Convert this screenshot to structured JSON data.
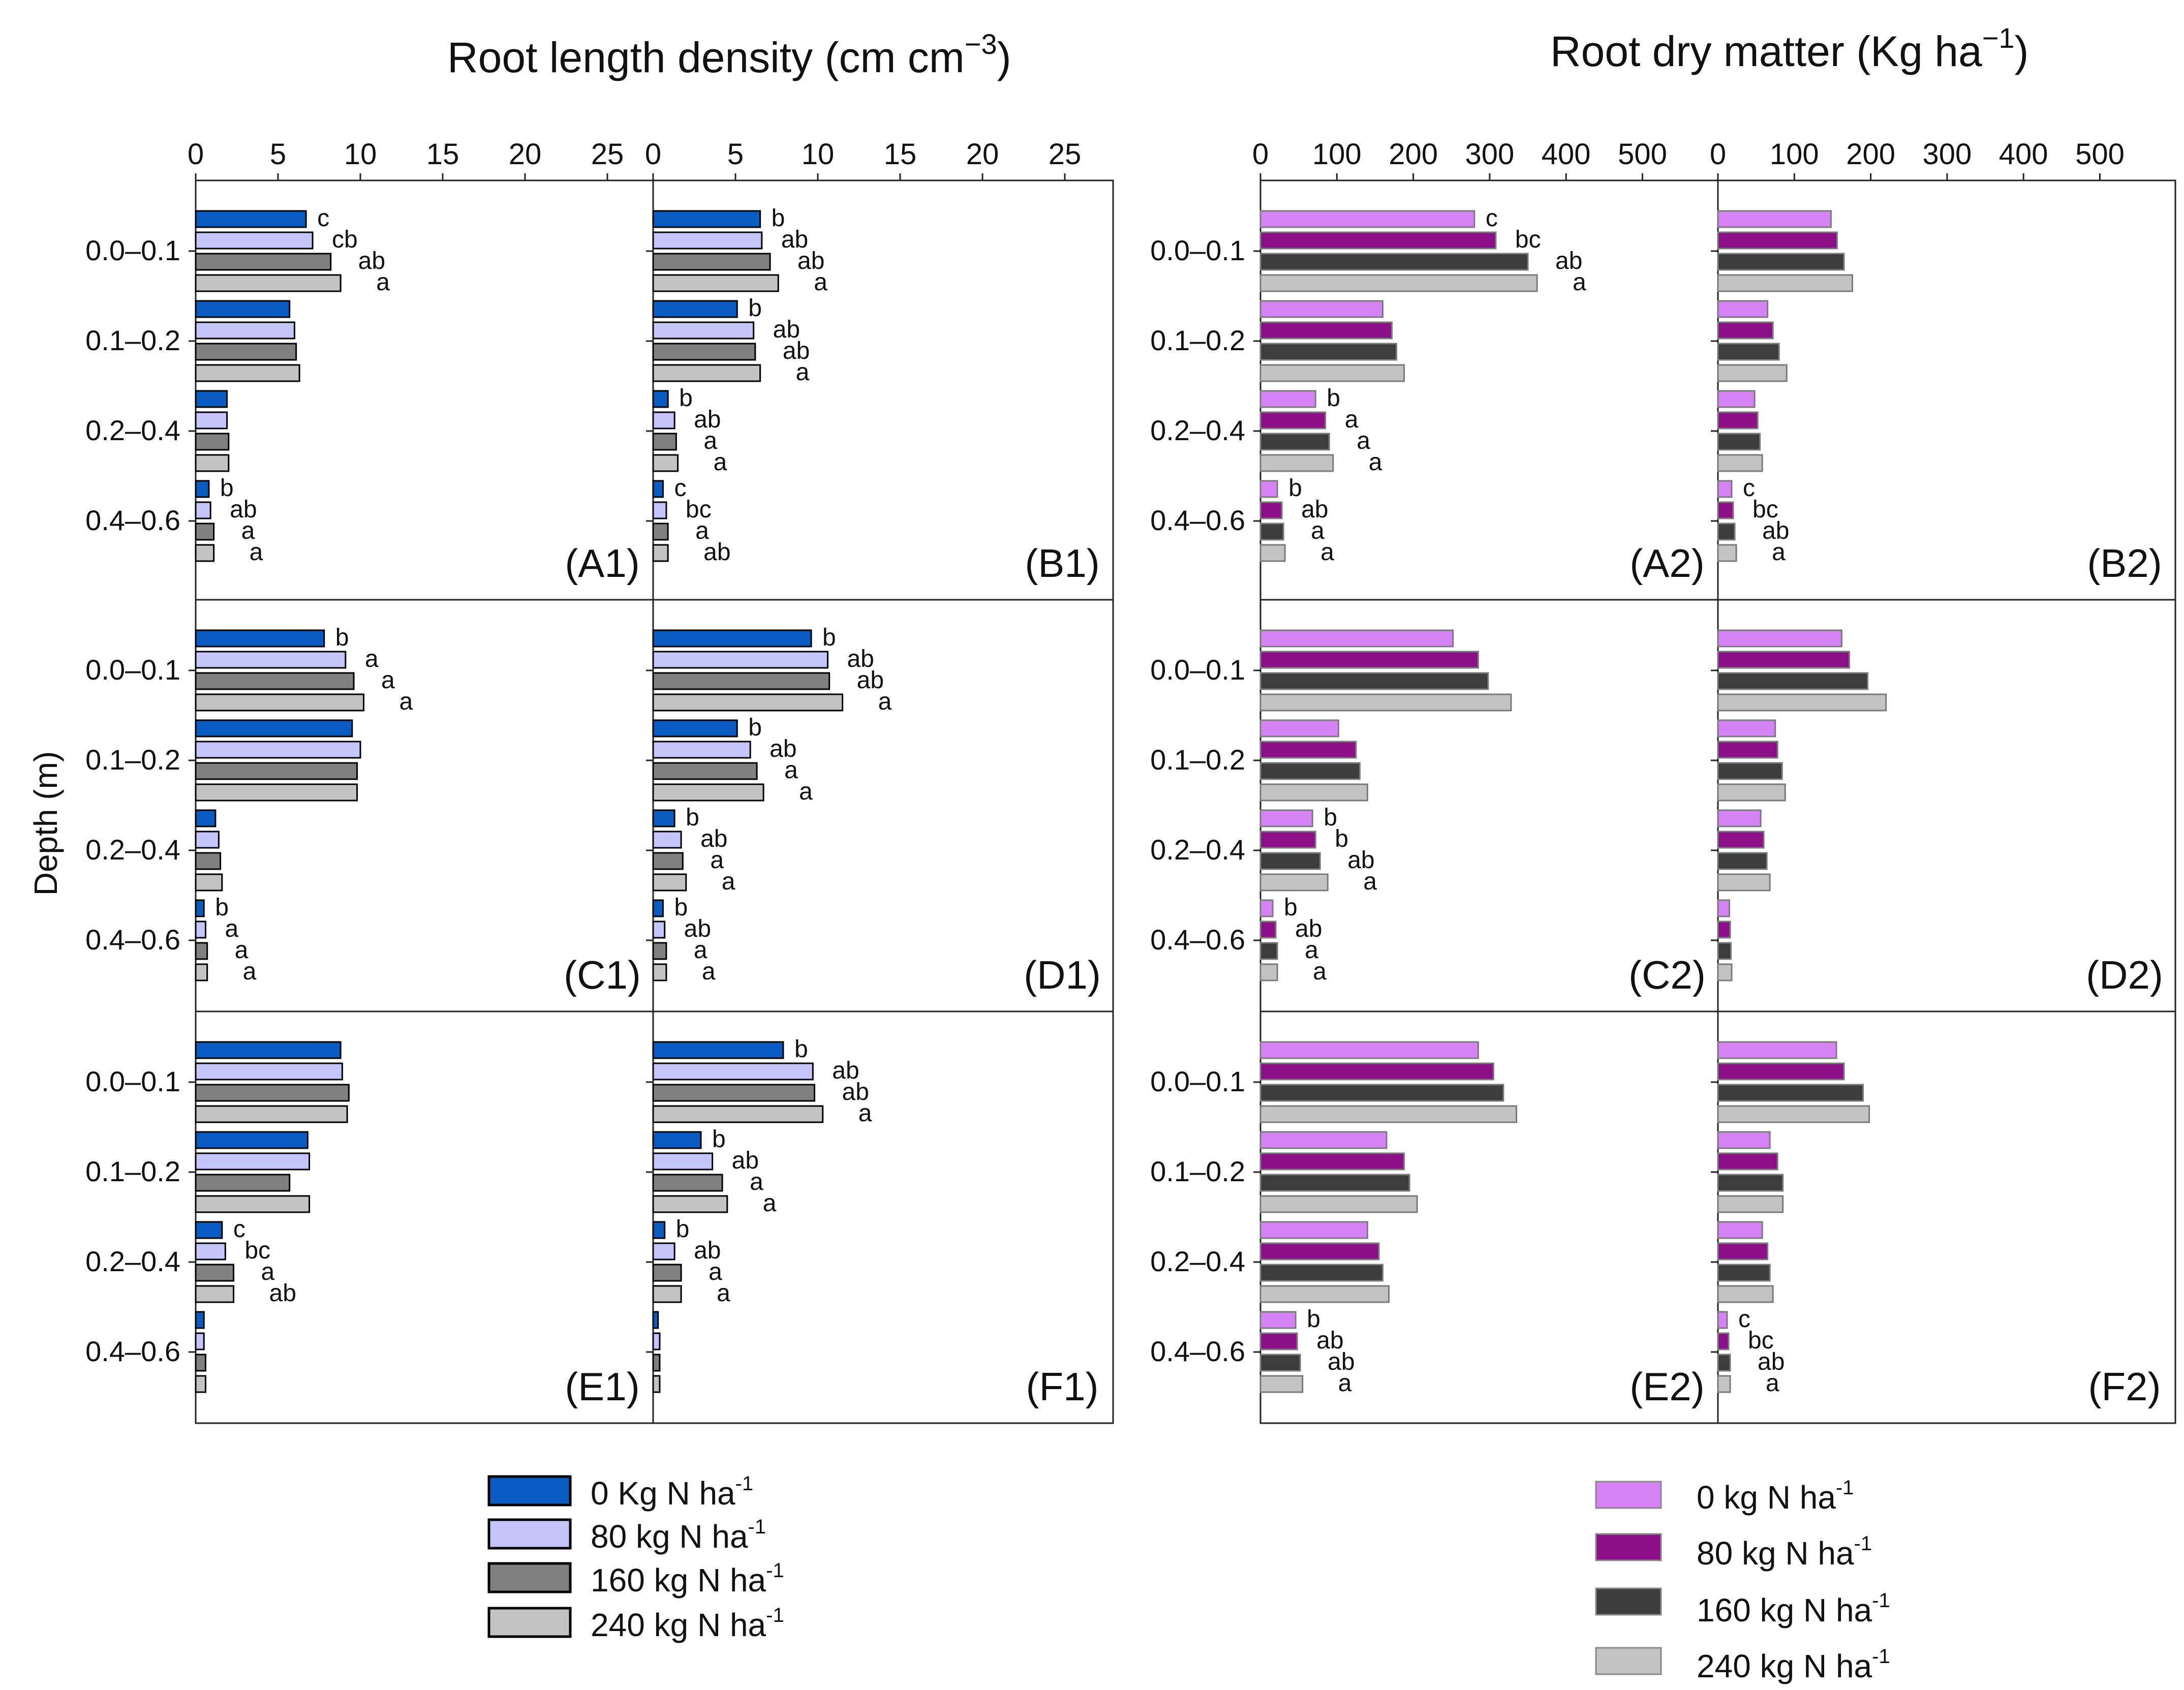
{
  "figure": {
    "left_title": "Root length density (cm cm",
    "left_title_unit_exp": "−3",
    "left_title_close": ")",
    "right_title": "Root dry matter (Kg ha",
    "right_title_unit_exp": "−1",
    "right_title_close": ")",
    "y_axis_label": "Depth (m)"
  },
  "legend_left": [
    {
      "label": "0 Kg N ha",
      "exp": "-1",
      "color": "#0b5cc1"
    },
    {
      "label": "80 kg N ha",
      "exp": "-1",
      "color": "#c5c5fb"
    },
    {
      "label": "160 kg N ha",
      "exp": "-1",
      "color": "#808080"
    },
    {
      "label": "240 kg N ha",
      "exp": "-1",
      "color": "#c3c3c3"
    }
  ],
  "legend_right": [
    {
      "label": "0 kg N ha",
      "exp": "-1",
      "color": "#d683f5"
    },
    {
      "label": "80 kg N ha",
      "exp": "-1",
      "color": "#8b0f87"
    },
    {
      "label": "160 kg N ha",
      "exp": "-1",
      "color": "#3c3c3c"
    },
    {
      "label": "240 kg N ha",
      "exp": "-1",
      "color": "#c3c3c3"
    }
  ],
  "chart_data": [
    {
      "id": "A1",
      "panel_label": "(A1)",
      "type": "bar",
      "orientation": "horizontal",
      "metric": "Root length density",
      "xlim": [
        0,
        27
      ],
      "xticks": [
        0,
        5,
        10,
        15,
        20,
        25
      ],
      "show_ticks": true,
      "show_ylabels": true,
      "palette": "blue",
      "categories": [
        "0.0–0.1",
        "0.1–0.2",
        "0.2–0.4",
        "0.4–0.6"
      ],
      "series": [
        {
          "name": "0 Kg N ha-1",
          "values": [
            6.7,
            5.7,
            1.9,
            0.8
          ]
        },
        {
          "name": "80 kg N ha-1",
          "values": [
            7.1,
            6.0,
            1.9,
            0.9
          ]
        },
        {
          "name": "160 kg N ha-1",
          "values": [
            8.2,
            6.1,
            2.0,
            1.1
          ]
        },
        {
          "name": "240 kg N ha-1",
          "values": [
            8.8,
            6.3,
            2.0,
            1.1
          ]
        }
      ],
      "letters": [
        [
          "c",
          "cb",
          "ab",
          "a"
        ],
        [
          "",
          "",
          "",
          ""
        ],
        [
          "",
          "",
          "",
          ""
        ],
        [
          "b",
          "ab",
          "a",
          "a"
        ]
      ]
    },
    {
      "id": "B1",
      "panel_label": "(B1)",
      "type": "bar",
      "orientation": "horizontal",
      "metric": "Root length density",
      "xlim": [
        0,
        27
      ],
      "xticks": [
        0,
        5,
        10,
        15,
        20,
        25
      ],
      "show_ticks": true,
      "show_ylabels": false,
      "palette": "blue",
      "categories": [
        "0.0–0.1",
        "0.1–0.2",
        "0.2–0.4",
        "0.4–0.6"
      ],
      "series": [
        {
          "name": "0 Kg N ha-1",
          "values": [
            6.5,
            5.1,
            0.9,
            0.6
          ]
        },
        {
          "name": "80 kg N ha-1",
          "values": [
            6.6,
            6.1,
            1.3,
            0.8
          ]
        },
        {
          "name": "160 kg N ha-1",
          "values": [
            7.1,
            6.2,
            1.4,
            0.9
          ]
        },
        {
          "name": "240 kg N ha-1",
          "values": [
            7.6,
            6.5,
            1.5,
            0.9
          ]
        }
      ],
      "letters": [
        [
          "b",
          "ab",
          "ab",
          "a"
        ],
        [
          "b",
          "ab",
          "ab",
          "a"
        ],
        [
          "b",
          "ab",
          "a",
          "a"
        ],
        [
          "c",
          "bc",
          "a",
          "ab"
        ]
      ]
    },
    {
      "id": "A2",
      "panel_label": "(A2)",
      "type": "bar",
      "orientation": "horizontal",
      "metric": "Root dry matter",
      "xlim": [
        0,
        580
      ],
      "xticks": [
        0,
        100,
        200,
        300,
        400,
        500
      ],
      "show_ticks": true,
      "show_ylabels": true,
      "palette": "purple",
      "categories": [
        "0.0–0.1",
        "0.1–0.2",
        "0.2–0.4",
        "0.4–0.6"
      ],
      "series": [
        {
          "name": "0 kg N ha-1",
          "values": [
            280,
            160,
            72,
            22
          ]
        },
        {
          "name": "80 kg N ha-1",
          "values": [
            308,
            172,
            85,
            28
          ]
        },
        {
          "name": "160 kg N ha-1",
          "values": [
            350,
            178,
            90,
            30
          ]
        },
        {
          "name": "240 kg N ha-1",
          "values": [
            362,
            188,
            95,
            32
          ]
        }
      ],
      "letters": [
        [
          "c",
          "bc",
          "ab",
          "a"
        ],
        [
          "",
          "",
          "",
          ""
        ],
        [
          "b",
          "a",
          "a",
          "a"
        ],
        [
          "b",
          "ab",
          "a",
          "a"
        ]
      ]
    },
    {
      "id": "B2",
      "panel_label": "(B2)",
      "type": "bar",
      "orientation": "horizontal",
      "metric": "Root dry matter",
      "xlim": [
        0,
        580
      ],
      "xticks": [
        0,
        100,
        200,
        300,
        400,
        500
      ],
      "show_ticks": true,
      "show_ylabels": false,
      "palette": "purple",
      "categories": [
        "0.0–0.1",
        "0.1–0.2",
        "0.2–0.4",
        "0.4–0.6"
      ],
      "series": [
        {
          "name": "0 kg N ha-1",
          "values": [
            148,
            65,
            48,
            18
          ]
        },
        {
          "name": "80 kg N ha-1",
          "values": [
            156,
            72,
            52,
            20
          ]
        },
        {
          "name": "160 kg N ha-1",
          "values": [
            165,
            80,
            55,
            22
          ]
        },
        {
          "name": "240 kg N ha-1",
          "values": [
            176,
            90,
            58,
            24
          ]
        }
      ],
      "letters": [
        [
          "",
          "",
          "",
          ""
        ],
        [
          "",
          "",
          "",
          ""
        ],
        [
          "",
          "",
          "",
          ""
        ],
        [
          "c",
          "bc",
          "ab",
          "a"
        ]
      ]
    },
    {
      "id": "C1",
      "panel_label": "(C1)",
      "type": "bar",
      "orientation": "horizontal",
      "metric": "Root length density",
      "xlim": [
        0,
        27
      ],
      "xticks": [],
      "show_ticks": false,
      "show_ylabels": true,
      "palette": "blue",
      "categories": [
        "0.0–0.1",
        "0.1–0.2",
        "0.2–0.4",
        "0.4–0.6"
      ],
      "series": [
        {
          "name": "0 Kg N ha-1",
          "values": [
            7.8,
            9.5,
            1.2,
            0.5
          ]
        },
        {
          "name": "80 kg N ha-1",
          "values": [
            9.1,
            10.0,
            1.4,
            0.6
          ]
        },
        {
          "name": "160 kg N ha-1",
          "values": [
            9.6,
            9.8,
            1.5,
            0.7
          ]
        },
        {
          "name": "240 kg N ha-1",
          "values": [
            10.2,
            9.8,
            1.6,
            0.7
          ]
        }
      ],
      "letters": [
        [
          "b",
          "a",
          "a",
          "a"
        ],
        [
          "",
          "",
          "",
          ""
        ],
        [
          "",
          "",
          "",
          ""
        ],
        [
          "b",
          "a",
          "a",
          "a"
        ]
      ]
    },
    {
      "id": "D1",
      "panel_label": "(D1)",
      "type": "bar",
      "orientation": "horizontal",
      "metric": "Root length density",
      "xlim": [
        0,
        27
      ],
      "xticks": [],
      "show_ticks": false,
      "show_ylabels": false,
      "palette": "blue",
      "categories": [
        "0.0–0.1",
        "0.1–0.2",
        "0.2–0.4",
        "0.4–0.6"
      ],
      "series": [
        {
          "name": "0 Kg N ha-1",
          "values": [
            9.6,
            5.1,
            1.3,
            0.6
          ]
        },
        {
          "name": "80 kg N ha-1",
          "values": [
            10.6,
            5.9,
            1.7,
            0.7
          ]
        },
        {
          "name": "160 kg N ha-1",
          "values": [
            10.7,
            6.3,
            1.8,
            0.8
          ]
        },
        {
          "name": "240 kg N ha-1",
          "values": [
            11.5,
            6.7,
            2.0,
            0.8
          ]
        }
      ],
      "letters": [
        [
          "b",
          "ab",
          "ab",
          "a"
        ],
        [
          "b",
          "ab",
          "a",
          "a"
        ],
        [
          "b",
          "ab",
          "a",
          "a"
        ],
        [
          "b",
          "ab",
          "a",
          "a"
        ]
      ]
    },
    {
      "id": "C2",
      "panel_label": "(C2)",
      "type": "bar",
      "orientation": "horizontal",
      "metric": "Root dry matter",
      "xlim": [
        0,
        580
      ],
      "xticks": [],
      "show_ticks": false,
      "show_ylabels": true,
      "palette": "purple",
      "categories": [
        "0.0–0.1",
        "0.1–0.2",
        "0.2–0.4",
        "0.4–0.6"
      ],
      "series": [
        {
          "name": "0 kg N ha-1",
          "values": [
            252,
            102,
            68,
            16
          ]
        },
        {
          "name": "80 kg N ha-1",
          "values": [
            285,
            125,
            72,
            20
          ]
        },
        {
          "name": "160 kg N ha-1",
          "values": [
            298,
            130,
            78,
            22
          ]
        },
        {
          "name": "240 kg N ha-1",
          "values": [
            328,
            140,
            88,
            22
          ]
        }
      ],
      "letters": [
        [
          "",
          "",
          "",
          ""
        ],
        [
          "",
          "",
          "",
          ""
        ],
        [
          "b",
          "b",
          "ab",
          "a"
        ],
        [
          "b",
          "ab",
          "a",
          "a"
        ]
      ]
    },
    {
      "id": "D2",
      "panel_label": "(D2)",
      "type": "bar",
      "orientation": "horizontal",
      "metric": "Root dry matter",
      "xlim": [
        0,
        580
      ],
      "xticks": [],
      "show_ticks": false,
      "show_ylabels": false,
      "palette": "purple",
      "categories": [
        "0.0–0.1",
        "0.1–0.2",
        "0.2–0.4",
        "0.4–0.6"
      ],
      "series": [
        {
          "name": "0 kg N ha-1",
          "values": [
            162,
            75,
            56,
            15
          ]
        },
        {
          "name": "80 kg N ha-1",
          "values": [
            172,
            78,
            60,
            16
          ]
        },
        {
          "name": "160 kg N ha-1",
          "values": [
            196,
            84,
            64,
            17
          ]
        },
        {
          "name": "240 kg N ha-1",
          "values": [
            220,
            88,
            68,
            18
          ]
        }
      ],
      "letters": [
        [
          "",
          "",
          "",
          ""
        ],
        [
          "",
          "",
          "",
          ""
        ],
        [
          "",
          "",
          "",
          ""
        ],
        [
          "",
          "",
          "",
          ""
        ]
      ]
    },
    {
      "id": "E1",
      "panel_label": "(E1)",
      "type": "bar",
      "orientation": "horizontal",
      "metric": "Root length density",
      "xlim": [
        0,
        27
      ],
      "xticks": [],
      "show_ticks": false,
      "show_ylabels": true,
      "palette": "blue",
      "categories": [
        "0.0–0.1",
        "0.1–0.2",
        "0.2–0.4",
        "0.4–0.6"
      ],
      "series": [
        {
          "name": "0 Kg N ha-1",
          "values": [
            8.8,
            6.8,
            1.6,
            0.5
          ]
        },
        {
          "name": "80 kg N ha-1",
          "values": [
            8.9,
            6.9,
            1.8,
            0.5
          ]
        },
        {
          "name": "160 kg N ha-1",
          "values": [
            9.3,
            5.7,
            2.3,
            0.6
          ]
        },
        {
          "name": "240 kg N ha-1",
          "values": [
            9.2,
            6.9,
            2.3,
            0.6
          ]
        }
      ],
      "letters": [
        [
          "",
          "",
          "",
          ""
        ],
        [
          "",
          "",
          "",
          ""
        ],
        [
          "c",
          "bc",
          "a",
          "ab"
        ],
        [
          "",
          "",
          "",
          ""
        ]
      ]
    },
    {
      "id": "F1",
      "panel_label": "(F1)",
      "type": "bar",
      "orientation": "horizontal",
      "metric": "Root length density",
      "xlim": [
        0,
        27
      ],
      "xticks": [],
      "show_ticks": false,
      "show_ylabels": false,
      "palette": "blue",
      "categories": [
        "0.0–0.1",
        "0.1–0.2",
        "0.2–0.4",
        "0.4–0.6"
      ],
      "series": [
        {
          "name": "0 Kg N ha-1",
          "values": [
            7.9,
            2.9,
            0.7,
            0.3
          ]
        },
        {
          "name": "80 kg N ha-1",
          "values": [
            9.7,
            3.6,
            1.3,
            0.4
          ]
        },
        {
          "name": "160 kg N ha-1",
          "values": [
            9.8,
            4.2,
            1.7,
            0.4
          ]
        },
        {
          "name": "240 kg N ha-1",
          "values": [
            10.3,
            4.5,
            1.7,
            0.4
          ]
        }
      ],
      "letters": [
        [
          "b",
          "ab",
          "ab",
          "a"
        ],
        [
          "b",
          "ab",
          "a",
          "a"
        ],
        [
          "b",
          "ab",
          "a",
          "a"
        ],
        [
          "",
          "",
          "",
          ""
        ]
      ]
    },
    {
      "id": "E2",
      "panel_label": "(E2)",
      "type": "bar",
      "orientation": "horizontal",
      "metric": "Root dry matter",
      "xlim": [
        0,
        580
      ],
      "xticks": [],
      "show_ticks": false,
      "show_ylabels": true,
      "palette": "purple-dark",
      "categories": [
        "0.0–0.1",
        "0.1–0.2",
        "0.2–0.4",
        "0.4–0.6"
      ],
      "series": [
        {
          "name": "0 kg N ha-1",
          "values": [
            285,
            165,
            140,
            46
          ]
        },
        {
          "name": "80 kg N ha-1",
          "values": [
            305,
            188,
            155,
            48
          ]
        },
        {
          "name": "160 kg N ha-1",
          "values": [
            318,
            195,
            160,
            52
          ]
        },
        {
          "name": "240 kg N ha-1",
          "values": [
            335,
            205,
            168,
            55
          ]
        }
      ],
      "letters": [
        [
          "",
          "",
          "",
          ""
        ],
        [
          "",
          "",
          "",
          ""
        ],
        [
          "",
          "",
          "",
          ""
        ],
        [
          "b",
          "ab",
          "ab",
          "a"
        ]
      ]
    },
    {
      "id": "F2",
      "panel_label": "(F2)",
      "type": "bar",
      "orientation": "horizontal",
      "metric": "Root dry matter",
      "xlim": [
        0,
        580
      ],
      "xticks": [],
      "show_ticks": false,
      "show_ylabels": false,
      "palette": "purple-dark",
      "categories": [
        "0.0–0.1",
        "0.1–0.2",
        "0.2–0.4",
        "0.4–0.6"
      ],
      "series": [
        {
          "name": "0 kg N ha-1",
          "values": [
            155,
            68,
            58,
            12
          ]
        },
        {
          "name": "80 kg N ha-1",
          "values": [
            165,
            78,
            65,
            14
          ]
        },
        {
          "name": "160 kg N ha-1",
          "values": [
            190,
            85,
            68,
            16
          ]
        },
        {
          "name": "240 kg N ha-1",
          "values": [
            198,
            85,
            72,
            16
          ]
        }
      ],
      "letters": [
        [
          "",
          "",
          "",
          ""
        ],
        [
          "",
          "",
          "",
          ""
        ],
        [
          "",
          "",
          "",
          ""
        ],
        [
          "c",
          "bc",
          "ab",
          "a"
        ]
      ]
    }
  ]
}
